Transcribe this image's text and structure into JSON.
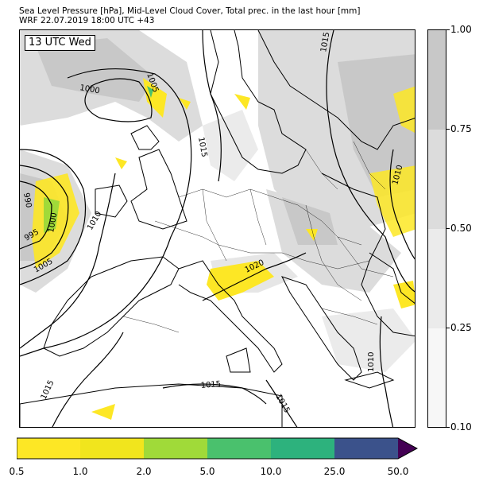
{
  "title_line1": "Sea Level Pressure [hPa], Mid-Level Cloud Cover, Total prec. in the last hour [mm]",
  "title_line2": "WRF 22.07.2019 18:00 UTC +43",
  "time_label": "13 UTC Wed",
  "isobar_labels": [
    "1015",
    "1005",
    "1000",
    "1015",
    "990",
    "995",
    "1000",
    "1005",
    "1010",
    "1020",
    "1010",
    "1010",
    "1015",
    "1015",
    "1015"
  ],
  "cloud_colorbar": {
    "ticks": [
      "1.00",
      "0.75",
      "0.50",
      "0.25",
      "0.10"
    ],
    "colors": [
      "#c8c8c8",
      "#dcdcdc",
      "#ebebeb",
      "#f7f7f7"
    ]
  },
  "precip_colorbar": {
    "ticks": [
      "0.5",
      "1.0",
      "2.0",
      "5.0",
      "10.0",
      "25.0",
      "50.0"
    ],
    "colors": [
      "#fde725",
      "#f1e51d",
      "#d6e21a",
      "#a0da39",
      "#4ac16d",
      "#2db27d",
      "#3b528b",
      "#440154"
    ]
  }
}
